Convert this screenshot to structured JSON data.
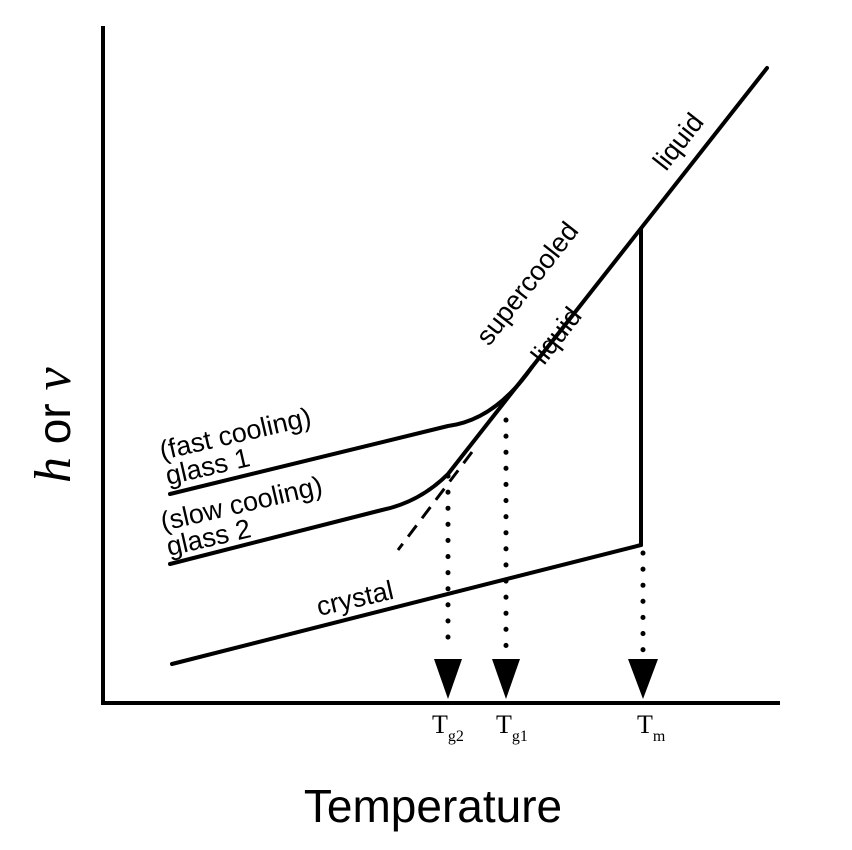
{
  "axes": {
    "x_title": "Temperature",
    "y_title_h": "h",
    "y_title_or": " or ",
    "y_title_v": "v"
  },
  "curves": {
    "liquid": "liquid",
    "supercooled_line1": "supercooled",
    "supercooled_line2": "liquid",
    "glass1_line1": "(fast cooling)",
    "glass1_line2": "glass 1",
    "glass2_line1": "(slow cooling)",
    "glass2_line2": "glass 2",
    "crystal": "crystal"
  },
  "markers": {
    "tg2": {
      "main": "T",
      "sub": "g2"
    },
    "tg1": {
      "main": "T",
      "sub": "g1"
    },
    "tm": {
      "main": "T",
      "sub": "m"
    }
  }
}
